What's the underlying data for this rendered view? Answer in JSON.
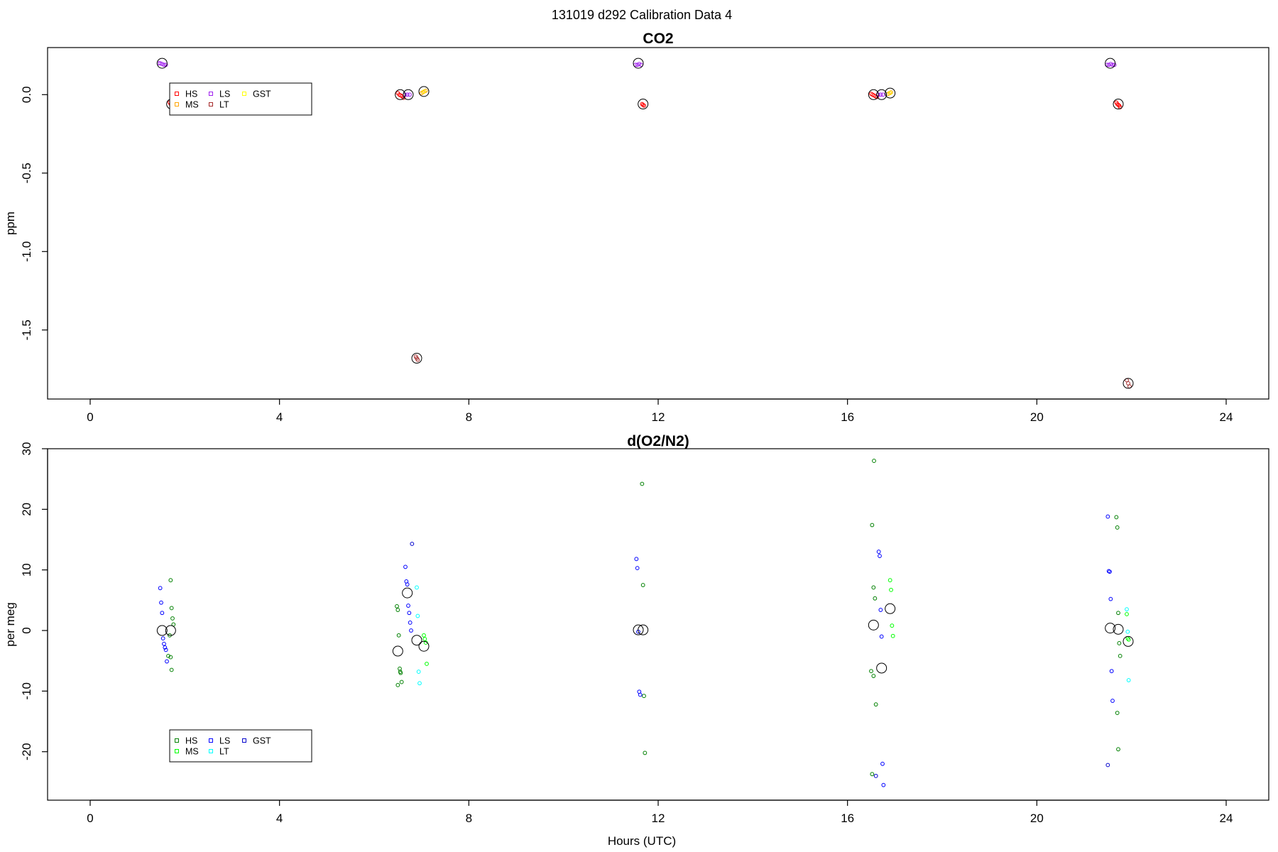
{
  "figure": {
    "title": "131019   d292   Calibration Data 4",
    "xlabel": "Hours (UTC)"
  },
  "chart_data": [
    {
      "type": "scatter",
      "title": "CO2",
      "xlabel": "",
      "ylabel": "ppm",
      "xlim": [
        -0.9,
        24.9
      ],
      "ylim": [
        -1.94,
        0.3
      ],
      "xticks": [
        0,
        4,
        8,
        12,
        16,
        20,
        24
      ],
      "yticks": [
        0.0,
        -0.5,
        -1.0,
        -1.5
      ],
      "ytick_labels": [
        "0.0",
        "-0.5",
        "-1.0",
        "-1.5"
      ],
      "legend_position": "top-left",
      "legend": [
        {
          "label": "HS",
          "color": "#ff0000"
        },
        {
          "label": "MS",
          "color": "#ffa500"
        },
        {
          "label": "LS",
          "color": "#a020f0"
        },
        {
          "label": "LT",
          "color": "#a52a2a"
        },
        {
          "label": "GST",
          "color": "#ffff00"
        }
      ],
      "means": [
        {
          "x": 1.52,
          "y": 0.2
        },
        {
          "x": 1.72,
          "y": -0.06
        },
        {
          "x": 6.55,
          "y": 0.0
        },
        {
          "x": 6.72,
          "y": 0.0
        },
        {
          "x": 6.9,
          "y": -1.68
        },
        {
          "x": 7.05,
          "y": 0.02
        },
        {
          "x": 11.58,
          "y": 0.2
        },
        {
          "x": 11.68,
          "y": -0.06
        },
        {
          "x": 16.55,
          "y": 0.0
        },
        {
          "x": 16.72,
          "y": 0.0
        },
        {
          "x": 16.9,
          "y": 0.01
        },
        {
          "x": 21.55,
          "y": 0.2
        },
        {
          "x": 21.72,
          "y": -0.06
        },
        {
          "x": 21.93,
          "y": -1.84
        }
      ],
      "series": [
        {
          "name": "HS",
          "color": "#ff0000",
          "x": [
            1.68,
            1.7,
            1.72,
            6.5,
            6.53,
            6.56,
            6.59,
            6.62,
            11.66,
            11.68,
            11.7,
            16.5,
            16.53,
            16.56,
            16.59,
            16.62,
            21.68,
            21.7,
            21.72,
            21.74,
            21.76
          ],
          "y": [
            -0.05,
            -0.06,
            -0.07,
            0.01,
            0.0,
            -0.005,
            -0.01,
            -0.02,
            -0.06,
            -0.065,
            -0.07,
            0.005,
            0.0,
            -0.005,
            -0.01,
            -0.015,
            -0.05,
            -0.06,
            -0.065,
            -0.07,
            -0.08
          ]
        },
        {
          "name": "MS",
          "color": "#ffa500",
          "x": [
            7.0,
            7.03,
            7.06,
            7.09,
            16.86,
            16.89,
            16.92
          ],
          "y": [
            0.01,
            0.015,
            0.02,
            0.025,
            0.005,
            0.01,
            0.015
          ]
        },
        {
          "name": "LS",
          "color": "#a020f0",
          "x": [
            1.45,
            1.48,
            1.52,
            1.56,
            1.6,
            6.65,
            6.7,
            6.75,
            11.52,
            11.56,
            11.6,
            11.64,
            16.65,
            16.7,
            16.75,
            21.48,
            21.52,
            21.56,
            21.6,
            21.64
          ],
          "y": [
            0.2,
            0.2,
            0.195,
            0.19,
            0.19,
            0.0,
            0.0,
            0.0,
            0.19,
            0.19,
            0.195,
            0.19,
            0.0,
            0.0,
            0.0,
            0.19,
            0.19,
            0.195,
            0.19,
            0.19
          ]
        },
        {
          "name": "LT",
          "color": "#a52a2a",
          "x": [
            6.88,
            6.9,
            6.92,
            21.9,
            21.93,
            21.96
          ],
          "y": [
            -1.67,
            -1.68,
            -1.69,
            -1.82,
            -1.84,
            -1.86
          ]
        },
        {
          "name": "GST",
          "color": "#ffff00",
          "x": [
            7.05,
            16.9
          ],
          "y": [
            0.02,
            0.01
          ]
        }
      ]
    },
    {
      "type": "scatter",
      "title": "d(O2/N2)",
      "xlabel": "Hours (UTC)",
      "ylabel": "per meg",
      "xlim": [
        -0.9,
        24.9
      ],
      "ylim": [
        -28,
        30
      ],
      "xticks": [
        0,
        4,
        8,
        12,
        16,
        20,
        24
      ],
      "yticks": [
        30,
        20,
        10,
        0,
        -10,
        -20
      ],
      "ytick_labels": [
        "30",
        "20",
        "10",
        "0",
        "-10",
        "-20"
      ],
      "legend_position": "bottom-left",
      "legend": [
        {
          "label": "HS",
          "color": "#008000"
        },
        {
          "label": "MS",
          "color": "#00ff00"
        },
        {
          "label": "LS",
          "color": "#0000ff"
        },
        {
          "label": "LT",
          "color": "#00ffff"
        },
        {
          "label": "GST",
          "color": "#0000cd"
        }
      ],
      "means": [
        {
          "x": 1.52,
          "y": 0.0
        },
        {
          "x": 1.7,
          "y": 0.0
        },
        {
          "x": 6.5,
          "y": -3.4
        },
        {
          "x": 6.7,
          "y": 6.2
        },
        {
          "x": 6.9,
          "y": -1.6
        },
        {
          "x": 7.05,
          "y": -2.6
        },
        {
          "x": 11.58,
          "y": 0.1
        },
        {
          "x": 11.68,
          "y": 0.1
        },
        {
          "x": 16.55,
          "y": 0.9
        },
        {
          "x": 16.72,
          "y": -6.2
        },
        {
          "x": 16.9,
          "y": 3.6
        },
        {
          "x": 21.55,
          "y": 0.4
        },
        {
          "x": 21.72,
          "y": 0.2
        },
        {
          "x": 21.93,
          "y": -1.8
        }
      ],
      "series": [
        {
          "name": "HS",
          "color": "#008000",
          "x": [
            1.7,
            1.72,
            1.74,
            1.76,
            1.68,
            1.65,
            1.7,
            1.72,
            6.48,
            6.5,
            6.52,
            6.54,
            6.56,
            6.58,
            6.5,
            6.55,
            11.66,
            11.68,
            11.7,
            11.72,
            16.52,
            16.55,
            16.58,
            16.5,
            16.55,
            16.6,
            16.52,
            16.56,
            21.68,
            21.7,
            21.72,
            21.74,
            21.76,
            21.7,
            21.72
          ],
          "y": [
            8.3,
            3.7,
            2.0,
            1.0,
            -0.8,
            -4.2,
            -4.4,
            -6.5,
            4.0,
            3.4,
            -0.8,
            -6.3,
            -7.0,
            -8.5,
            -9.0,
            -6.8,
            24.2,
            7.5,
            -10.8,
            -20.2,
            17.4,
            7.1,
            5.3,
            -6.7,
            -7.5,
            -12.2,
            -23.7,
            28.0,
            18.7,
            17.0,
            2.9,
            -2.1,
            -4.2,
            -13.6,
            -19.6
          ]
        },
        {
          "name": "MS",
          "color": "#00ff00",
          "x": [
            7.05,
            7.07,
            7.09,
            7.11,
            16.9,
            16.92,
            16.94,
            16.96,
            21.9,
            21.92,
            21.94
          ],
          "y": [
            -0.8,
            -1.4,
            -2.0,
            -5.5,
            8.3,
            6.7,
            0.8,
            -0.9,
            2.7,
            -1.3,
            -1.5
          ]
        },
        {
          "name": "LS",
          "color": "#0000ff",
          "x": [
            1.48,
            1.5,
            1.52,
            1.54,
            1.56,
            1.58,
            1.6,
            1.62,
            6.66,
            6.68,
            6.7,
            6.72,
            6.74,
            6.76,
            6.78,
            11.54,
            11.56,
            11.58,
            11.6,
            11.62,
            16.66,
            16.68,
            16.7,
            16.72,
            16.74,
            16.76,
            21.5,
            21.52,
            21.54,
            21.56,
            21.58,
            21.6
          ],
          "y": [
            7.0,
            4.6,
            2.9,
            -1.3,
            -2.2,
            -2.8,
            -3.2,
            -5.1,
            10.5,
            8.1,
            7.6,
            4.1,
            2.9,
            1.3,
            0.0,
            11.8,
            10.3,
            -0.2,
            -10.1,
            -10.6,
            13.0,
            12.3,
            3.4,
            -1.0,
            -22.0,
            -25.5,
            18.8,
            9.8,
            9.7,
            5.2,
            -6.7,
            -11.6
          ]
        },
        {
          "name": "LT",
          "color": "#00ffff",
          "x": [
            6.9,
            6.92,
            6.94,
            6.96,
            21.9,
            21.92,
            21.94
          ],
          "y": [
            7.1,
            2.4,
            -6.8,
            -8.7,
            3.5,
            -0.2,
            -8.2
          ]
        },
        {
          "name": "GST",
          "color": "#0000cd",
          "x": [
            6.8,
            21.5,
            16.6
          ],
          "y": [
            14.3,
            -22.2,
            -24.0
          ]
        }
      ]
    }
  ]
}
